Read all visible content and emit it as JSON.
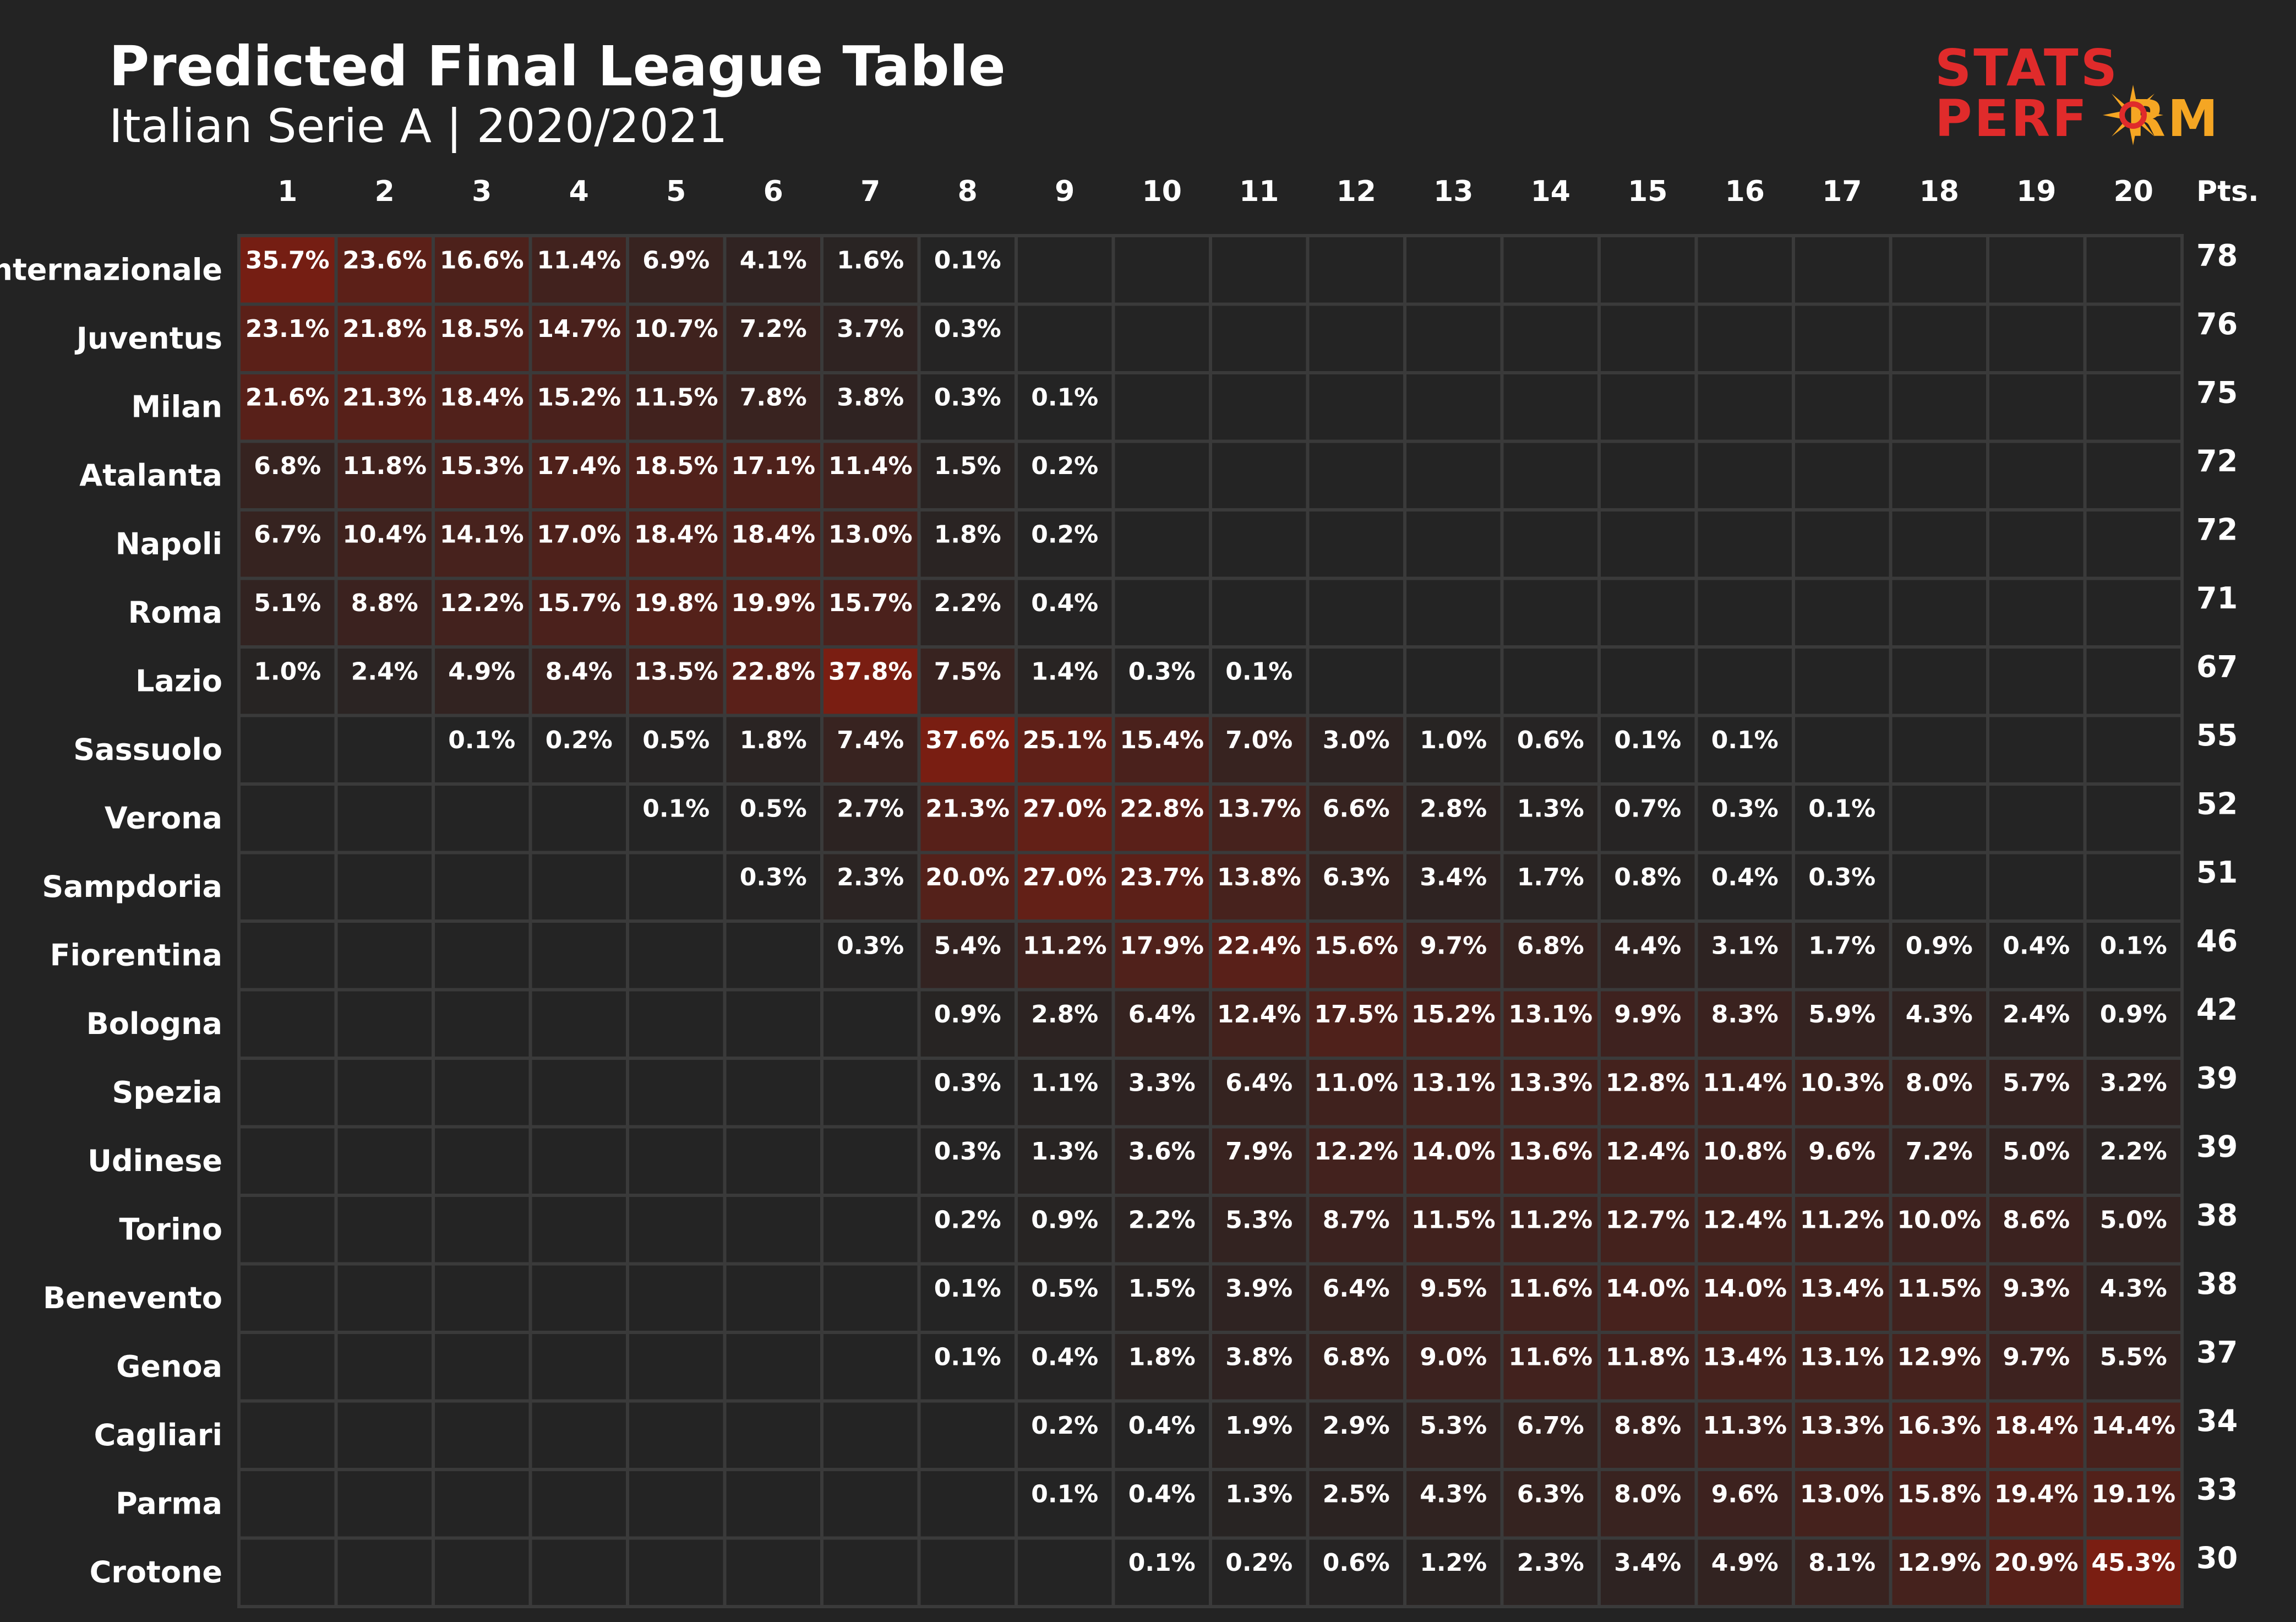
{
  "header": {
    "title": "Predicted Final League Table",
    "subtitle": "Italian Serie A | 2020/2021"
  },
  "logo": {
    "line1": "STATS",
    "line2": "PERF",
    "line2_tail": "RM",
    "brand_red": "#e02b2b",
    "brand_orange": "#f5a623"
  },
  "colors": {
    "background": "#232323",
    "cell_empty": "#242424",
    "cell_border": "#3a3a3a",
    "heat_max": "#7a1e12"
  },
  "chart_data": {
    "type": "heatmap",
    "title": "Predicted Final League Table",
    "subtitle": "Italian Serie A | 2020/2021",
    "x_categories": [
      "1",
      "2",
      "3",
      "4",
      "5",
      "6",
      "7",
      "8",
      "9",
      "10",
      "11",
      "12",
      "13",
      "14",
      "15",
      "16",
      "17",
      "18",
      "19",
      "20"
    ],
    "points_label": "Pts.",
    "rows": [
      {
        "team": "Internazionale",
        "pts": 78,
        "values": [
          35.7,
          23.6,
          16.6,
          11.4,
          6.9,
          4.1,
          1.6,
          0.1,
          null,
          null,
          null,
          null,
          null,
          null,
          null,
          null,
          null,
          null,
          null,
          null
        ]
      },
      {
        "team": "Juventus",
        "pts": 76,
        "values": [
          23.1,
          21.8,
          18.5,
          14.7,
          10.7,
          7.2,
          3.7,
          0.3,
          null,
          null,
          null,
          null,
          null,
          null,
          null,
          null,
          null,
          null,
          null,
          null
        ]
      },
      {
        "team": "Milan",
        "pts": 75,
        "values": [
          21.6,
          21.3,
          18.4,
          15.2,
          11.5,
          7.8,
          3.8,
          0.3,
          0.1,
          null,
          null,
          null,
          null,
          null,
          null,
          null,
          null,
          null,
          null,
          null
        ]
      },
      {
        "team": "Atalanta",
        "pts": 72,
        "values": [
          6.8,
          11.8,
          15.3,
          17.4,
          18.5,
          17.1,
          11.4,
          1.5,
          0.2,
          null,
          null,
          null,
          null,
          null,
          null,
          null,
          null,
          null,
          null,
          null
        ]
      },
      {
        "team": "Napoli",
        "pts": 72,
        "values": [
          6.7,
          10.4,
          14.1,
          17.0,
          18.4,
          18.4,
          13.0,
          1.8,
          0.2,
          null,
          null,
          null,
          null,
          null,
          null,
          null,
          null,
          null,
          null,
          null
        ]
      },
      {
        "team": "Roma",
        "pts": 71,
        "values": [
          5.1,
          8.8,
          12.2,
          15.7,
          19.8,
          19.9,
          15.7,
          2.2,
          0.4,
          null,
          null,
          null,
          null,
          null,
          null,
          null,
          null,
          null,
          null,
          null
        ]
      },
      {
        "team": "Lazio",
        "pts": 67,
        "values": [
          1.0,
          2.4,
          4.9,
          8.4,
          13.5,
          22.8,
          37.8,
          7.5,
          1.4,
          0.3,
          0.1,
          null,
          null,
          null,
          null,
          null,
          null,
          null,
          null,
          null
        ]
      },
      {
        "team": "Sassuolo",
        "pts": 55,
        "values": [
          null,
          null,
          0.1,
          0.2,
          0.5,
          1.8,
          7.4,
          37.6,
          25.1,
          15.4,
          7.0,
          3.0,
          1.0,
          0.6,
          0.1,
          0.1,
          null,
          null,
          null,
          null
        ]
      },
      {
        "team": "Verona",
        "pts": 52,
        "values": [
          null,
          null,
          null,
          null,
          0.1,
          0.5,
          2.7,
          21.3,
          27.0,
          22.8,
          13.7,
          6.6,
          2.8,
          1.3,
          0.7,
          0.3,
          0.1,
          null,
          null,
          null
        ]
      },
      {
        "team": "Sampdoria",
        "pts": 51,
        "values": [
          null,
          null,
          null,
          null,
          null,
          0.3,
          2.3,
          20.0,
          27.0,
          23.7,
          13.8,
          6.3,
          3.4,
          1.7,
          0.8,
          0.4,
          0.3,
          null,
          null,
          null
        ]
      },
      {
        "team": "Fiorentina",
        "pts": 46,
        "values": [
          null,
          null,
          null,
          null,
          null,
          null,
          0.3,
          5.4,
          11.2,
          17.9,
          22.4,
          15.6,
          9.7,
          6.8,
          4.4,
          3.1,
          1.7,
          0.9,
          0.4,
          0.1
        ]
      },
      {
        "team": "Bologna",
        "pts": 42,
        "values": [
          null,
          null,
          null,
          null,
          null,
          null,
          null,
          0.9,
          2.8,
          6.4,
          12.4,
          17.5,
          15.2,
          13.1,
          9.9,
          8.3,
          5.9,
          4.3,
          2.4,
          0.9
        ]
      },
      {
        "team": "Spezia",
        "pts": 39,
        "values": [
          null,
          null,
          null,
          null,
          null,
          null,
          null,
          0.3,
          1.1,
          3.3,
          6.4,
          11.0,
          13.1,
          13.3,
          12.8,
          11.4,
          10.3,
          8.0,
          5.7,
          3.2
        ]
      },
      {
        "team": "Udinese",
        "pts": 39,
        "values": [
          null,
          null,
          null,
          null,
          null,
          null,
          null,
          0.3,
          1.3,
          3.6,
          7.9,
          12.2,
          14.0,
          13.6,
          12.4,
          10.8,
          9.6,
          7.2,
          5.0,
          2.2
        ]
      },
      {
        "team": "Torino",
        "pts": 38,
        "values": [
          null,
          null,
          null,
          null,
          null,
          null,
          null,
          0.2,
          0.9,
          2.2,
          5.3,
          8.7,
          11.5,
          11.2,
          12.7,
          12.4,
          11.2,
          10.0,
          8.6,
          5.0
        ]
      },
      {
        "team": "Benevento",
        "pts": 38,
        "values": [
          null,
          null,
          null,
          null,
          null,
          null,
          null,
          0.1,
          0.5,
          1.5,
          3.9,
          6.4,
          9.5,
          11.6,
          14.0,
          14.0,
          13.4,
          11.5,
          9.3,
          4.3
        ]
      },
      {
        "team": "Genoa",
        "pts": 37,
        "values": [
          null,
          null,
          null,
          null,
          null,
          null,
          null,
          0.1,
          0.4,
          1.8,
          3.8,
          6.8,
          9.0,
          11.6,
          11.8,
          13.4,
          13.1,
          12.9,
          9.7,
          5.5
        ]
      },
      {
        "team": "Cagliari",
        "pts": 34,
        "values": [
          null,
          null,
          null,
          null,
          null,
          null,
          null,
          null,
          0.2,
          0.4,
          1.9,
          2.9,
          5.3,
          6.7,
          8.8,
          11.3,
          13.3,
          16.3,
          18.4,
          14.4
        ]
      },
      {
        "team": "Parma",
        "pts": 33,
        "values": [
          null,
          null,
          null,
          null,
          null,
          null,
          null,
          null,
          0.1,
          0.4,
          1.3,
          2.5,
          4.3,
          6.3,
          8.0,
          9.6,
          13.0,
          15.8,
          19.4,
          19.1
        ]
      },
      {
        "team": "Crotone",
        "pts": 30,
        "values": [
          null,
          null,
          null,
          null,
          null,
          null,
          null,
          null,
          null,
          0.1,
          0.2,
          0.6,
          1.2,
          2.3,
          3.4,
          4.9,
          8.1,
          12.9,
          20.9,
          45.3
        ]
      }
    ]
  }
}
